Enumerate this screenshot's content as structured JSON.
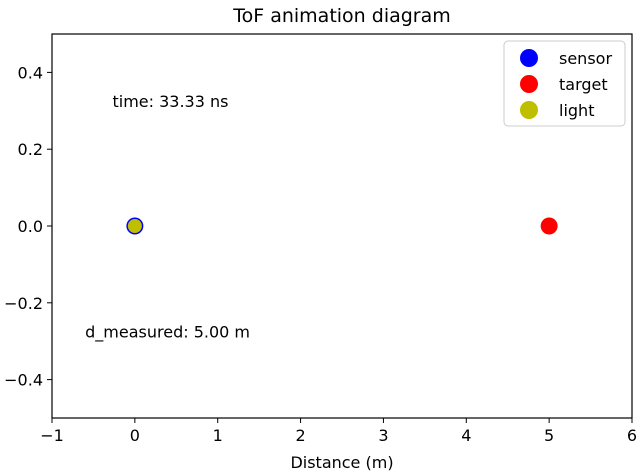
{
  "chart_data": {
    "type": "scatter",
    "title": "ToF animation diagram",
    "xlabel": "Distance (m)",
    "ylabel": "",
    "xlim": [
      -1,
      6
    ],
    "ylim": [
      -0.5,
      0.5
    ],
    "xticks": [
      -1,
      0,
      1,
      2,
      3,
      4,
      5,
      6
    ],
    "yticks": [
      -0.4,
      -0.2,
      0.0,
      0.2,
      0.4
    ],
    "xtick_labels": [
      "−1",
      "0",
      "1",
      "2",
      "3",
      "4",
      "5",
      "6"
    ],
    "ytick_labels": [
      "−0.4",
      "−0.2",
      "0.0",
      "0.2",
      "0.4"
    ],
    "grid": false,
    "legend_position": "top-right",
    "series": [
      {
        "name": "sensor",
        "color": "#0000ff",
        "points": [
          {
            "x": 0,
            "y": 0
          }
        ]
      },
      {
        "name": "target",
        "color": "#ff0000",
        "points": [
          {
            "x": 5,
            "y": 0
          }
        ]
      },
      {
        "name": "light",
        "color": "#bfbf00",
        "points": [
          {
            "x": 0,
            "y": 0
          }
        ]
      }
    ],
    "annotations": [
      {
        "id": "time",
        "text": "time: 33.33 ns",
        "x": -0.27,
        "y": 0.31
      },
      {
        "id": "distance",
        "text": "d_measured: 5.00 m",
        "x": -0.6,
        "y": -0.29
      }
    ]
  }
}
